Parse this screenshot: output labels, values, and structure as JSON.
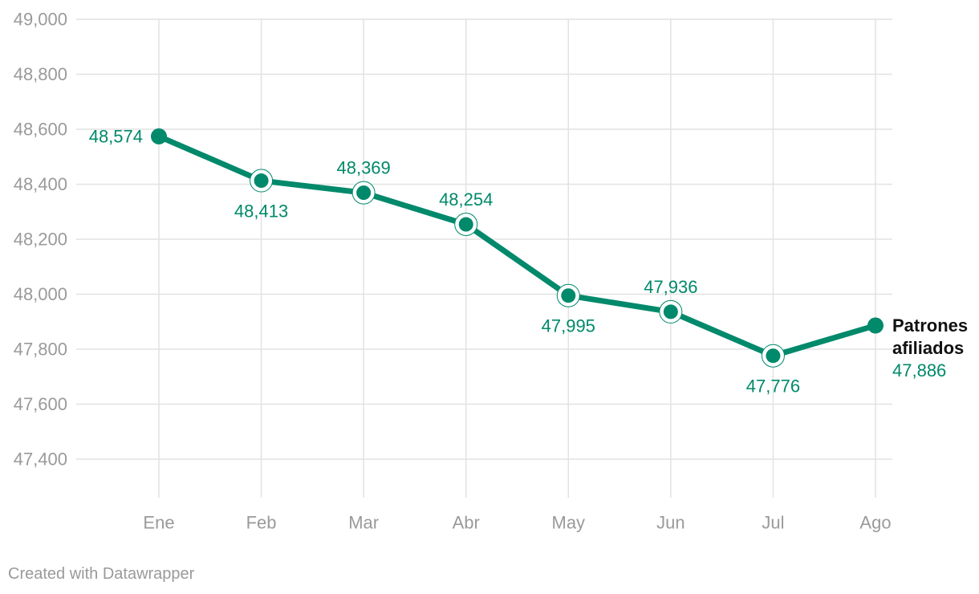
{
  "chart_data": {
    "type": "line",
    "title": "",
    "xlabel": "",
    "ylabel": "",
    "categories": [
      "Ene",
      "Feb",
      "Mar",
      "Abr",
      "May",
      "Jun",
      "Jul",
      "Ago"
    ],
    "series": [
      {
        "name_lines": [
          "Patrones",
          "afiliados"
        ],
        "values": [
          48574,
          48413,
          48369,
          48254,
          47995,
          47936,
          47776,
          47886
        ],
        "value_labels": [
          "48,574",
          "48,413",
          "48,369",
          "48,254",
          "47,995",
          "47,936",
          "47,776",
          "47,886"
        ],
        "label_position": [
          "left",
          "below",
          "above",
          "above",
          "below",
          "above",
          "below",
          "end"
        ],
        "color": "#00896b"
      }
    ],
    "ylim": [
      47400,
      49000
    ],
    "yticks": [
      47400,
      47600,
      47800,
      48000,
      48200,
      48400,
      48600,
      48800,
      49000
    ],
    "ytick_labels": [
      "47,400",
      "47,600",
      "47,800",
      "48,000",
      "48,200",
      "48,400",
      "48,600",
      "48,800",
      "49,000"
    ],
    "grid": true,
    "legend": "none"
  },
  "colors": {
    "line": "#00896b",
    "grid": "#e2e2e2",
    "tick_text": "#9a9a9a",
    "series_name": "#111111"
  },
  "credit": "Created with Datawrapper"
}
